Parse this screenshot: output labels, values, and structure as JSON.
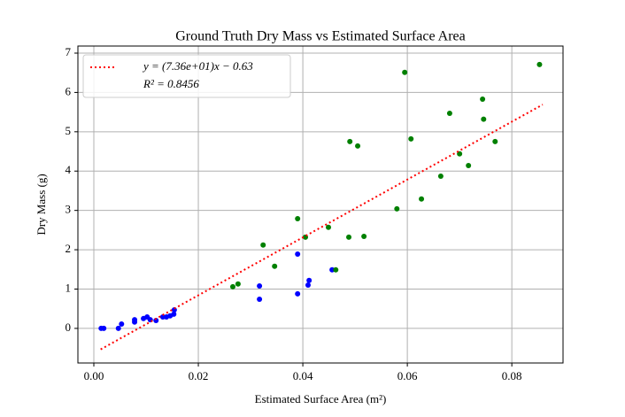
{
  "chart_data": {
    "type": "scatter",
    "title": "Ground Truth Dry Mass vs Estimated Surface Area",
    "x_label": "Estimated Surface Area (m²)",
    "y_label": "Dry Mass (g)",
    "xlim": [
      -0.00305,
      0.0898
    ],
    "ylim": [
      -0.88,
      7.18
    ],
    "xticks": [
      {
        "value": 0,
        "label": "0.00"
      },
      {
        "value": 0.02,
        "label": "0.02"
      },
      {
        "value": 0.04,
        "label": "0.04"
      },
      {
        "value": 0.06,
        "label": "0.06"
      },
      {
        "value": 0.08,
        "label": "0.08"
      }
    ],
    "yticks": [
      0,
      1,
      2,
      3,
      4,
      5,
      6,
      7
    ],
    "grid": true,
    "legend": "upper left",
    "series": [
      {
        "color": "#0000ff",
        "x": [
          0.0014,
          0.0019,
          0.0047,
          0.0053,
          0.0078,
          0.0078,
          0.0095,
          0.0102,
          0.0108,
          0.0119,
          0.0132,
          0.0139,
          0.0146,
          0.0153,
          0.0154,
          0.0317,
          0.0317,
          0.039,
          0.039,
          0.041,
          0.0412,
          0.0456
        ],
        "values": [
          0,
          0,
          0,
          0.11,
          0.16,
          0.22,
          0.25,
          0.29,
          0.22,
          0.2,
          0.29,
          0.29,
          0.32,
          0.36,
          0.47,
          1.08,
          0.74,
          1.89,
          0.88,
          1.1,
          1.22,
          1.49
        ]
      },
      {
        "color": "#008000",
        "x": [
          0.0266,
          0.0276,
          0.0324,
          0.0346,
          0.039,
          0.0405,
          0.0449,
          0.0463,
          0.049,
          0.0488,
          0.0505,
          0.0517,
          0.058,
          0.0595,
          0.0607,
          0.0627,
          0.0664,
          0.0681,
          0.07,
          0.0744,
          0.0746,
          0.0717,
          0.0768,
          0.0853
        ],
        "values": [
          1.06,
          1.13,
          2.12,
          1.58,
          2.79,
          2.32,
          2.57,
          1.49,
          4.75,
          2.32,
          4.64,
          2.34,
          3.04,
          6.51,
          4.82,
          3.29,
          3.87,
          5.47,
          4.44,
          5.83,
          5.32,
          4.14,
          4.75,
          6.71
        ]
      }
    ],
    "fit": {
      "name": "y = (7.36e+01)x − 0.63",
      "color": "#ff0000",
      "x": [
        0.0013,
        0.0859
      ],
      "values": [
        -0.534,
        5.69
      ]
    },
    "annotation": "R² = 0.8456"
  }
}
